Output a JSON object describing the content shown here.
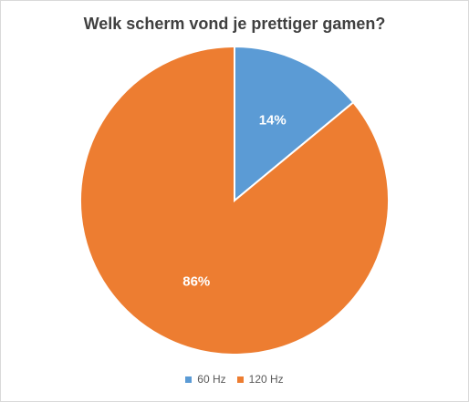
{
  "chart_data": {
    "type": "pie",
    "title": "Welk scherm vond je prettiger gamen?",
    "categories": [
      "60 Hz",
      "120 Hz"
    ],
    "values": [
      14,
      86
    ],
    "data_labels": [
      "14%",
      "86%"
    ],
    "colors": [
      "#5b9bd5",
      "#ed7d31"
    ],
    "start_angle": "12 o'clock",
    "direction": "clockwise",
    "legend_position": "bottom"
  }
}
